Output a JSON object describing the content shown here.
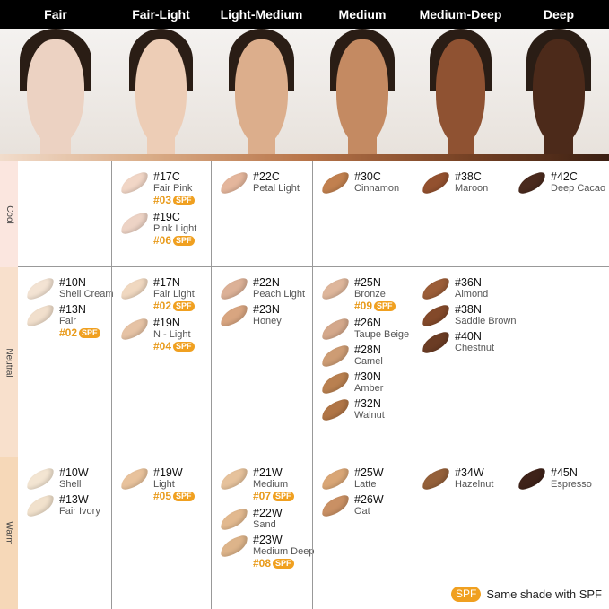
{
  "header": {
    "columns": [
      "Fair",
      "Fair-Light",
      "Light-Medium",
      "Medium",
      "Medium-Deep",
      "Deep"
    ]
  },
  "faces": {
    "skin": [
      "#ecd2c2",
      "#edcdb6",
      "#dcae8c",
      "#c48a62",
      "#8f5232",
      "#4c2a1a"
    ]
  },
  "tones": [
    "Cool",
    "Neutral",
    "Warm"
  ],
  "spf_badge": "SPF",
  "legend": {
    "badge": "SPF",
    "text": "Same shade with SPF"
  },
  "grid": [
    [
      [],
      [
        {
          "code": "#17C",
          "name": "Fair Pink",
          "spf": "#03",
          "color": "#f1d6c6"
        },
        {
          "code": "#19C",
          "name": "Pink Light",
          "spf": "#06",
          "color": "#edd3c5"
        }
      ],
      [
        {
          "code": "#22C",
          "name": "Petal Light",
          "color": "#e4b69c"
        }
      ],
      [
        {
          "code": "#30C",
          "name": "Cinnamon",
          "color": "#c1804f"
        }
      ],
      [
        {
          "code": "#38C",
          "name": "Maroon",
          "color": "#93512f"
        }
      ],
      [
        {
          "code": "#42C",
          "name": "Deep Cacao",
          "color": "#4a2a1e"
        }
      ]
    ],
    [
      [
        {
          "code": "#10N",
          "name": "Shell Cream",
          "color": "#f3e3d3"
        },
        {
          "code": "#13N",
          "name": "Fair",
          "spf": "#02",
          "color": "#f1dfcc"
        }
      ],
      [
        {
          "code": "#17N",
          "name": "Fair Light",
          "spf": "#02",
          "color": "#f0d8c0"
        },
        {
          "code": "#19N",
          "name": "N - Light",
          "spf": "#04",
          "color": "#e6c3a5"
        }
      ],
      [
        {
          "code": "#22N",
          "name": "Peach Light",
          "color": "#dcb197"
        },
        {
          "code": "#23N",
          "name": "Honey",
          "color": "#d8a580"
        }
      ],
      [
        {
          "code": "#25N",
          "name": "Bronze",
          "spf": "#09",
          "color": "#deb69b"
        },
        {
          "code": "#26N",
          "name": "Taupe Beige",
          "color": "#d4a88b"
        },
        {
          "code": "#28N",
          "name": "Camel",
          "color": "#cd9c74"
        },
        {
          "code": "#30N",
          "name": "Amber",
          "color": "#b98050"
        },
        {
          "code": "#32N",
          "name": "Walnut",
          "color": "#b07546"
        }
      ],
      [
        {
          "code": "#36N",
          "name": "Almond",
          "color": "#9b5d38"
        },
        {
          "code": "#38N",
          "name": "Saddle Brown",
          "color": "#83492a"
        },
        {
          "code": "#40N",
          "name": "Chestnut",
          "color": "#6b3c24"
        }
      ],
      []
    ],
    [
      [
        {
          "code": "#10W",
          "name": "Shell",
          "color": "#f3e5d2"
        },
        {
          "code": "#13W",
          "name": "Fair Ivory",
          "color": "#f1e1cc"
        }
      ],
      [
        {
          "code": "#19W",
          "name": "Light",
          "spf": "#05",
          "color": "#e8c29c"
        }
      ],
      [
        {
          "code": "#21W",
          "name": "Medium",
          "spf": "#07",
          "color": "#e6c29c"
        },
        {
          "code": "#22W",
          "name": "Sand",
          "color": "#e2b98f"
        },
        {
          "code": "#23W",
          "name": "Medium Deep",
          "spf": "#08",
          "color": "#ddb48a"
        }
      ],
      [
        {
          "code": "#25W",
          "name": "Latte",
          "color": "#d9a676"
        },
        {
          "code": "#26W",
          "name": "Oat",
          "color": "#c99064"
        }
      ],
      [
        {
          "code": "#34W",
          "name": "Hazelnut",
          "color": "#94603a"
        }
      ],
      [
        {
          "code": "#45N",
          "name": "Espresso",
          "color": "#3e2219"
        }
      ]
    ]
  ]
}
